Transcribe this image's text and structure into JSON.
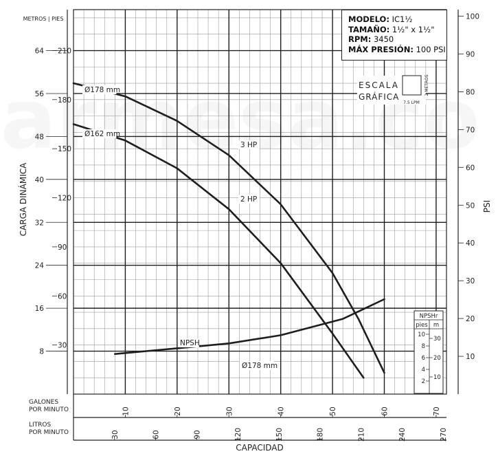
{
  "chart_data": {
    "type": "line",
    "xlabel": "CAPACIDAD",
    "ylabel": "CARGA DINÁMICA",
    "y2label": "PSI",
    "header_left": "METROS | PIES",
    "x_gpm": {
      "label": "GALONES POR MINUTO",
      "ticks": [
        10,
        20,
        30,
        40,
        50,
        60,
        70
      ],
      "range": [
        0,
        72
      ]
    },
    "x_lpm": {
      "label": "LITROS POR MINUTO",
      "ticks": [
        30,
        60,
        90,
        120,
        150,
        180,
        210,
        240,
        270
      ]
    },
    "y_metros": {
      "ticks": [
        8,
        16,
        24,
        32,
        40,
        48,
        56,
        64
      ]
    },
    "y_pies": {
      "ticks": [
        30,
        60,
        90,
        120,
        150,
        180,
        210
      ],
      "range": [
        0,
        235
      ]
    },
    "y_psi": {
      "ticks": [
        10,
        20,
        30,
        40,
        50,
        60,
        70,
        80,
        90,
        100
      ]
    },
    "info": {
      "modelo_label": "MODELO:",
      "modelo": "IC1½",
      "tamano_label": "TAMAÑO:",
      "tamano": "1½\" x 1½\"",
      "rpm_label": "RPM:",
      "rpm": "3450",
      "presion_label": "MÁX PRESIÓN:",
      "presion": "100 PSI"
    },
    "escala": {
      "line1": "ESCALA",
      "line2": "GRÁFICA",
      "x_unit": "7.5 LPM",
      "y_unit": "2 METROS"
    },
    "npshr": {
      "title": "NPSHr",
      "col_pies": "pies",
      "col_m": "m",
      "pies_ticks": [
        2,
        4,
        6,
        8,
        10
      ],
      "m_ticks": [
        10,
        20,
        30
      ]
    },
    "series": [
      {
        "name": "Ø178 mm",
        "hp_label": "3 HP",
        "x": [
          0,
          10,
          20,
          30,
          40,
          50,
          55,
          60
        ],
        "y": [
          190,
          182,
          167,
          146,
          116,
          74,
          46,
          13
        ]
      },
      {
        "name": "Ø162 mm",
        "hp_label": "2 HP",
        "x": [
          0,
          10,
          20,
          30,
          40,
          50,
          56
        ],
        "y": [
          165,
          155,
          138,
          113,
          80,
          37,
          10
        ]
      },
      {
        "name": "Ø178 mm",
        "label2": "NPSH",
        "x": [
          8,
          20,
          30,
          40,
          46,
          52,
          56,
          60
        ],
        "y": [
          24.5,
          28,
          31,
          36,
          41,
          46,
          52,
          58
        ]
      }
    ]
  }
}
